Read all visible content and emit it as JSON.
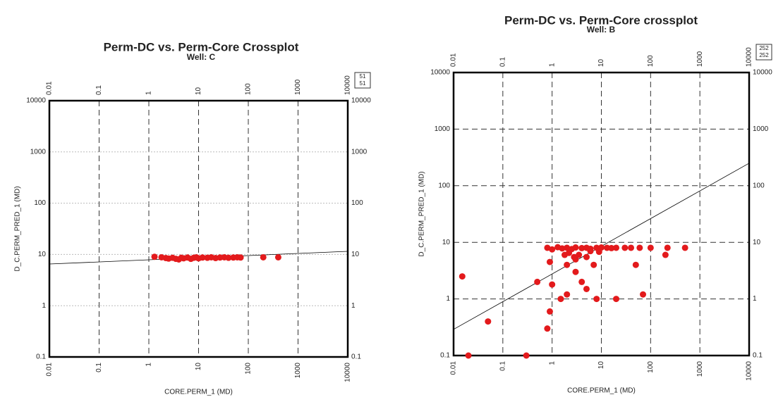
{
  "chart_data": [
    {
      "type": "scatter",
      "title": "Perm-DC vs. Perm-Core Crossplot",
      "subtitle": "Well: C",
      "x_label": "CORE.PERM_1 (MD)",
      "y_label": "D_C.PERM_PRED_1 (MD)",
      "log_x": true,
      "log_y": true,
      "grid": true,
      "xlim": [
        0.01,
        10000
      ],
      "xticks": [
        0.01,
        0.1,
        1,
        10,
        100,
        1000,
        10000
      ],
      "ylim": [
        0.1,
        10000
      ],
      "yticks": [
        0.1,
        1,
        10,
        100,
        1000,
        10000
      ],
      "legend_counts": [
        "51",
        "51"
      ],
      "series": [
        {
          "name": "Well: C",
          "color": "#e31a1c",
          "x": [
            1.3,
            1.8,
            2.2,
            2.5,
            3,
            3.5,
            4,
            4.5,
            5,
            6,
            7,
            8,
            9,
            10,
            12,
            15,
            18,
            22,
            27,
            33,
            40,
            50,
            60,
            70,
            200,
            400
          ],
          "y": [
            9,
            8.8,
            8.5,
            8.3,
            8.6,
            8.2,
            8,
            8.6,
            8.4,
            8.7,
            8.2,
            8.6,
            8.8,
            8.4,
            8.7,
            8.6,
            8.8,
            8.5,
            8.7,
            8.8,
            8.6,
            8.7,
            8.8,
            8.7,
            8.8,
            8.8
          ]
        }
      ],
      "trendline": {
        "x": [
          0.01,
          10000
        ],
        "y": [
          6.5,
          11.5
        ]
      }
    },
    {
      "type": "scatter",
      "title": "Perm-DC vs. Perm-Core crossplot",
      "subtitle": "Well: B",
      "x_label": "CORE.PERM_1 (MD)",
      "y_label": "D_C.PERM_PRED_1 (MD)",
      "log_x": true,
      "log_y": true,
      "grid": true,
      "xlim": [
        0.01,
        10000
      ],
      "xticks": [
        0.01,
        0.1,
        1,
        10,
        100,
        1000,
        10000
      ],
      "ylim": [
        0.1,
        10000
      ],
      "yticks": [
        0.1,
        1,
        10,
        100,
        1000,
        10000
      ],
      "legend_counts": [
        "252",
        "252"
      ],
      "series": [
        {
          "name": "Well: B",
          "color": "#e31a1c",
          "x": [
            0.015,
            0.02,
            0.05,
            0.3,
            0.8,
            0.9,
            1,
            0.5,
            0.9,
            1.5,
            2,
            3,
            5,
            8,
            20,
            70,
            50,
            200,
            500,
            4,
            3,
            5,
            2,
            7,
            0.8,
            1,
            1.3,
            1.6,
            2,
            2.5,
            3,
            4,
            5,
            6,
            8,
            10,
            13,
            16,
            20,
            30,
            40,
            60,
            100,
            220,
            2.2,
            3.5,
            6,
            9,
            1.8,
            2.8
          ],
          "y": [
            2.5,
            0.1,
            0.4,
            0.1,
            0.3,
            0.6,
            1.8,
            2,
            4.5,
            1,
            1.2,
            3,
            1.5,
            1,
            1,
            1.2,
            4,
            6,
            8,
            2,
            5,
            5.5,
            4,
            4,
            8,
            7.5,
            8.2,
            7.8,
            8,
            7.6,
            8.1,
            7.9,
            8,
            7.7,
            8,
            8.1,
            8,
            7.9,
            8,
            8,
            8,
            8,
            8,
            8,
            6.5,
            6,
            7,
            6.8,
            6,
            5.5
          ]
        }
      ],
      "trendline": {
        "x": [
          0.01,
          10000
        ],
        "y": [
          0.29,
          250
        ]
      }
    }
  ]
}
